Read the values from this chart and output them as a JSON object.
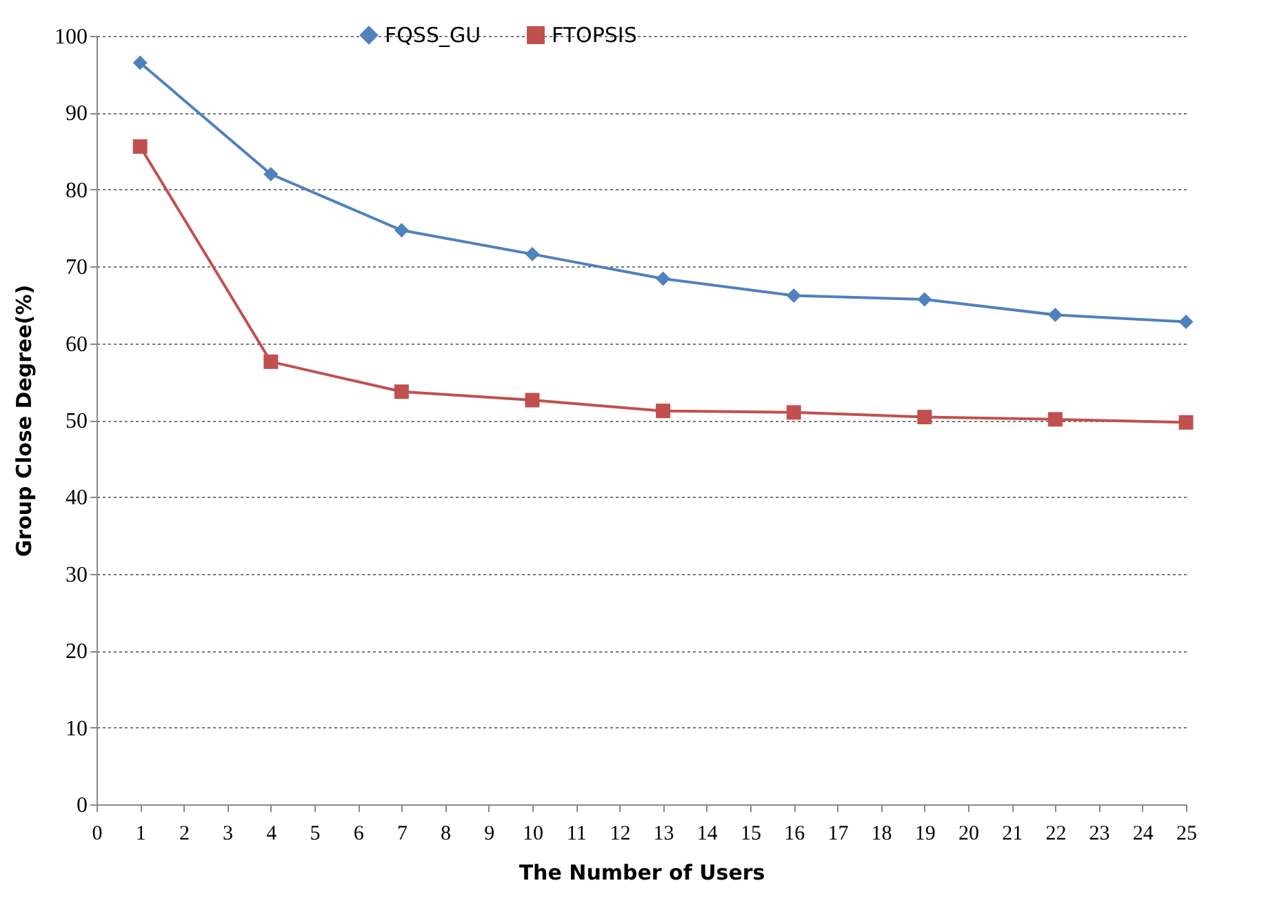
{
  "chart_data": {
    "type": "line",
    "xlabel": "The Number of Users",
    "ylabel": "Group Close Degree(%)",
    "x": [
      1,
      4,
      7,
      10,
      13,
      16,
      19,
      22,
      25
    ],
    "series": [
      {
        "name": "FQSS_GU",
        "color": "#4f81bd",
        "marker": "diamond",
        "values": [
          96.5,
          82.0,
          74.7,
          71.6,
          68.4,
          66.2,
          65.7,
          63.7,
          62.8
        ]
      },
      {
        "name": "FTOPSIS",
        "color": "#c0504d",
        "marker": "square",
        "values": [
          85.6,
          57.6,
          53.7,
          52.6,
          51.2,
          51.0,
          50.4,
          50.1,
          49.7
        ]
      }
    ],
    "xlim": [
      0,
      25
    ],
    "xticks": [
      0,
      1,
      2,
      3,
      4,
      5,
      6,
      7,
      8,
      9,
      10,
      11,
      12,
      13,
      14,
      15,
      16,
      17,
      18,
      19,
      20,
      21,
      22,
      23,
      24,
      25
    ],
    "ylim": [
      0,
      100
    ],
    "yticks": [
      0,
      10,
      20,
      30,
      40,
      50,
      60,
      70,
      80,
      90,
      100
    ],
    "grid": "y",
    "legend": "top"
  }
}
